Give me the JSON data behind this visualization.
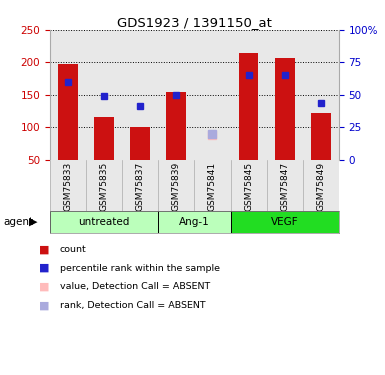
{
  "title": "GDS1923 / 1391150_at",
  "samples": [
    "GSM75833",
    "GSM75835",
    "GSM75837",
    "GSM75839",
    "GSM75841",
    "GSM75845",
    "GSM75847",
    "GSM75849"
  ],
  "bar_values": [
    197,
    115,
    100,
    155,
    null,
    215,
    207,
    122
  ],
  "blue_dot_values": [
    170,
    148,
    133,
    149,
    null,
    181,
    181,
    137
  ],
  "absent_value": [
    null,
    null,
    null,
    null,
    88,
    null,
    null,
    null
  ],
  "absent_rank": [
    null,
    null,
    null,
    null,
    90,
    null,
    null,
    null
  ],
  "ylim_left": [
    50,
    250
  ],
  "ylim_right": [
    0,
    100
  ],
  "yticks_left": [
    50,
    100,
    150,
    200,
    250
  ],
  "yticks_right": [
    0,
    25,
    50,
    75,
    100
  ],
  "groups": [
    {
      "label": "untreated",
      "indices": [
        0,
        1,
        2
      ],
      "color": "#bbffbb"
    },
    {
      "label": "Ang-1",
      "indices": [
        3,
        4
      ],
      "color": "#bbffbb"
    },
    {
      "label": "VEGF",
      "indices": [
        5,
        6,
        7
      ],
      "color": "#22dd22"
    }
  ],
  "bar_color": "#cc1111",
  "blue_dot_color": "#2222cc",
  "absent_val_color": "#ffbbbb",
  "absent_rank_color": "#aaaadd",
  "left_tick_color": "#cc0000",
  "right_tick_color": "#0000cc",
  "grid_color": "#000000",
  "bg_color": "#ffffff",
  "plot_bg_color": "#e8e8e8"
}
